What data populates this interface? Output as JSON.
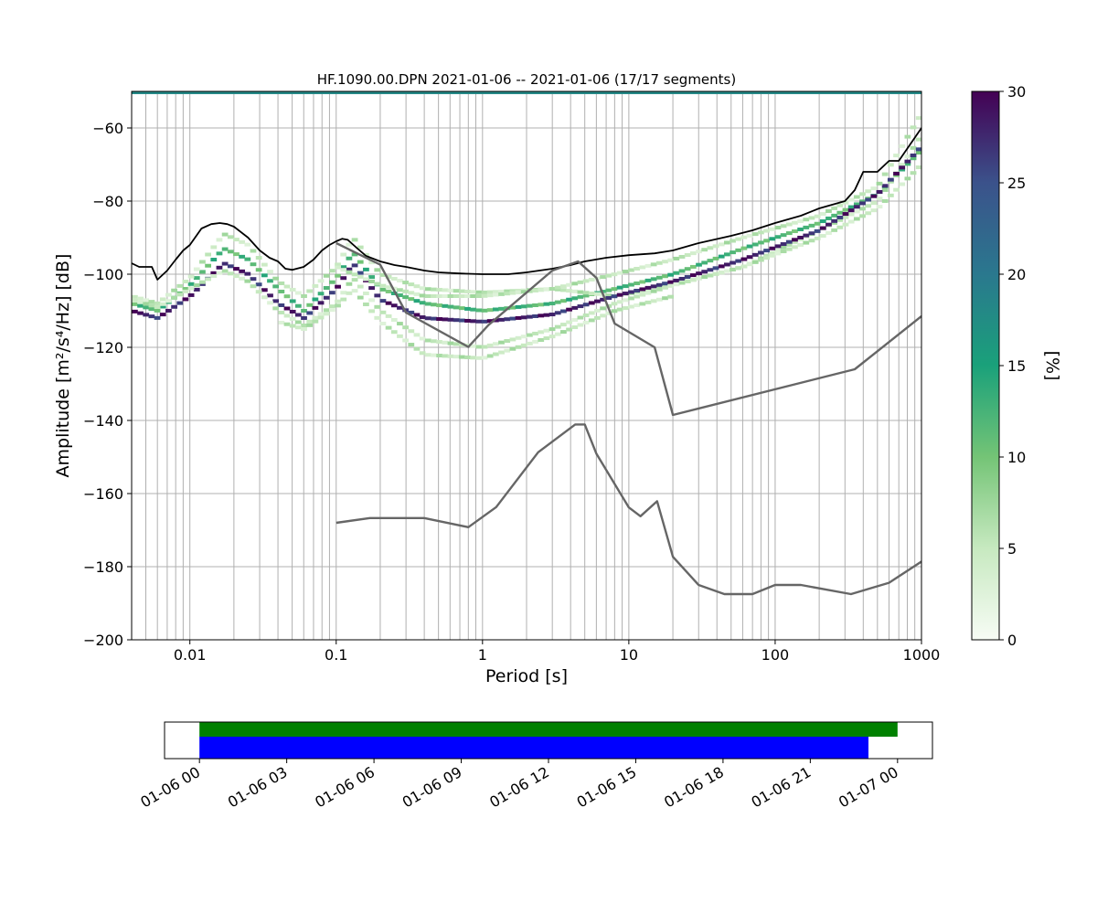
{
  "figure": {
    "title": "HF.1090.00.DPN   2021-01-06 -- 2021-01-06  (17/17 segments)"
  },
  "chart_data": [
    {
      "type": "heatmap",
      "title": "HF.1090.00.DPN   2021-01-06 -- 2021-01-06  (17/17 segments)",
      "xlabel": "Period [s]",
      "ylabel": "Amplitude [m²/s⁴/Hz] [dB]",
      "x_scale": "log",
      "xlim": [
        0.004,
        1000
      ],
      "ylim": [
        -200,
        -50
      ],
      "x_ticks": [
        0.01,
        0.1,
        1,
        10,
        100,
        1000
      ],
      "x_tick_labels": [
        "0.01",
        "0.1",
        "1",
        "10",
        "100",
        "1000"
      ],
      "y_ticks": [
        -200,
        -180,
        -160,
        -140,
        -120,
        -100,
        -80,
        -60
      ],
      "y_tick_labels": [
        "−200",
        "−180",
        "−160",
        "−140",
        "−120",
        "−100",
        "−80",
        "−60"
      ],
      "grid": true,
      "colorbar": {
        "label": "[%]",
        "range": [
          0,
          30
        ],
        "ticks": [
          0,
          5,
          10,
          15,
          20,
          25,
          30
        ],
        "tick_labels": [
          "0",
          "5",
          "10",
          "15",
          "20",
          "25",
          "30"
        ],
        "stops": [
          "#f7fcf5",
          "#c7e9c0",
          "#74c476",
          "#1aa17a",
          "#2a788e",
          "#3b528b",
          "#440154"
        ]
      },
      "heatmap_bands": [
        {
          "x": [
            0.004,
            0.006,
            0.01,
            0.017,
            0.025,
            0.04,
            0.06,
            0.1,
            0.13,
            0.2,
            0.4,
            1,
            3,
            8,
            20,
            60,
            200,
            500,
            1000
          ],
          "y": [
            -108,
            -110,
            -103,
            -93,
            -96,
            -104,
            -110,
            -101,
            -94,
            -104,
            -108,
            -110,
            -108,
            -104,
            -100,
            -93,
            -86,
            -78,
            -66
          ],
          "pct": 12
        },
        {
          "x": [
            0.004,
            0.006,
            0.01,
            0.017,
            0.025,
            0.04,
            0.06,
            0.1,
            0.13,
            0.2,
            0.4,
            1,
            3,
            8,
            20,
            60,
            200,
            500,
            1000
          ],
          "y": [
            -106,
            -108,
            -101,
            -89,
            -92,
            -102,
            -106,
            -98,
            -90,
            -100,
            -104,
            -105,
            -104,
            -106,
            -103,
            -98,
            -88,
            -80,
            -62
          ],
          "pct": 5
        },
        {
          "x": [
            0.004,
            0.006,
            0.01,
            0.017,
            0.025,
            0.04,
            0.06,
            0.1,
            0.13,
            0.2,
            0.4,
            1,
            3,
            8,
            20,
            60,
            200,
            500,
            1000
          ],
          "y": [
            -110,
            -112,
            -106,
            -97,
            -100,
            -108,
            -112,
            -104,
            -97,
            -107,
            -112,
            -113,
            -111,
            -106,
            -102,
            -96,
            -88,
            -78,
            -65
          ],
          "pct": 28
        },
        {
          "x": [
            0.004,
            0.006,
            0.01,
            0.017,
            0.025,
            0.04,
            0.06,
            0.1,
            0.13,
            0.2,
            0.4,
            1,
            3,
            8,
            20,
            60,
            200,
            500,
            1000
          ],
          "y": [
            -107,
            -109,
            -104,
            -99,
            -102,
            -110,
            -114,
            -108,
            -101,
            -110,
            -118,
            -120,
            -115,
            -108,
            -103,
            -98,
            -90,
            -82,
            -70
          ],
          "pct": 5
        },
        {
          "x": [
            0.04,
            0.06,
            0.1,
            0.13,
            0.2,
            0.4,
            1,
            3,
            8,
            20
          ],
          "y": [
            -113,
            -115,
            -109,
            -104,
            -113,
            -122,
            -123,
            -117,
            -110,
            -106
          ],
          "pct": 5
        },
        {
          "x": [
            0.1,
            0.2,
            0.4,
            1,
            3,
            8,
            20,
            60,
            200,
            500,
            1000
          ],
          "y": [
            -98,
            -103,
            -106,
            -106,
            -104,
            -100,
            -96,
            -90,
            -84,
            -76,
            -56
          ],
          "pct": 5
        }
      ],
      "top_row": {
        "x": [
          0.004,
          1000
        ],
        "y": -50,
        "pct": 18
      },
      "series": [
        {
          "style": "black",
          "x": [
            0.004,
            0.0045,
            0.005,
            0.0055,
            0.006,
            0.007,
            0.008,
            0.009,
            0.01,
            0.012,
            0.014,
            0.016,
            0.018,
            0.02,
            0.025,
            0.03,
            0.035,
            0.04,
            0.045,
            0.05,
            0.06,
            0.07,
            0.08,
            0.09,
            0.1,
            0.11,
            0.12,
            0.14,
            0.16,
            0.2,
            0.25,
            0.3,
            0.4,
            0.5,
            0.7,
            1,
            1.5,
            2,
            3,
            4,
            5,
            7,
            10,
            15,
            20,
            30,
            50,
            70,
            100,
            150,
            200,
            300,
            350,
            400,
            500,
            600,
            700,
            1000
          ],
          "y": [
            -97,
            -98,
            -98,
            -98,
            -101.5,
            -99,
            -96,
            -93.5,
            -92,
            -87.5,
            -86.3,
            -86,
            -86.3,
            -87,
            -90,
            -93.5,
            -95.5,
            -96.5,
            -98.5,
            -98.8,
            -98,
            -96,
            -93.5,
            -92,
            -91,
            -90.3,
            -90.6,
            -93,
            -95,
            -96.5,
            -97.5,
            -98,
            -99,
            -99.5,
            -99.8,
            -100,
            -100,
            -99.5,
            -98.5,
            -97.5,
            -96.5,
            -95.5,
            -94.8,
            -94.3,
            -93.5,
            -91.5,
            -89.5,
            -88,
            -86,
            -84,
            -82,
            -80,
            -77,
            -72,
            -72,
            -69,
            -69,
            -60
          ]
        },
        {
          "style": "gray",
          "x": [
            0.1,
            0.2,
            0.3,
            0.8,
            1.1,
            3,
            4.5,
            6,
            8,
            15,
            20,
            350,
            1000
          ],
          "y": [
            -91.5,
            -97.4,
            -110.5,
            -119.9,
            -113.9,
            -99,
            -96.5,
            -101,
            -113.5,
            -120,
            -138.5,
            -126,
            -111.5
          ]
        },
        {
          "style": "gray",
          "x": [
            0.1,
            0.17,
            0.4,
            0.8,
            1.24,
            2.4,
            4.3,
            5,
            6,
            10,
            12,
            15.6,
            20,
            30,
            45,
            70,
            100,
            150,
            330,
            600,
            1000
          ],
          "y": [
            -168,
            -166.7,
            -166.7,
            -169.2,
            -163.7,
            -148.7,
            -141.1,
            -141.1,
            -149.1,
            -163.8,
            -166.2,
            -162.1,
            -177.3,
            -185,
            -187.5,
            -187.5,
            -185,
            -185,
            -187.5,
            -184.4,
            -178.6
          ]
        }
      ]
    },
    {
      "type": "bar",
      "orientation": "horizontal",
      "x_ticks": [
        "01-06 00",
        "01-06 03",
        "01-06 06",
        "01-06 09",
        "01-06 12",
        "01-06 15",
        "01-06 18",
        "01-06 21",
        "01-07 00"
      ],
      "xlim_hours": [
        -1.2,
        25.2
      ],
      "series": [
        {
          "color": "#008000",
          "start_hour": 0,
          "end_hour": 24
        },
        {
          "color": "#0000ff",
          "start_hour": 0,
          "end_hour": 23
        }
      ]
    }
  ]
}
